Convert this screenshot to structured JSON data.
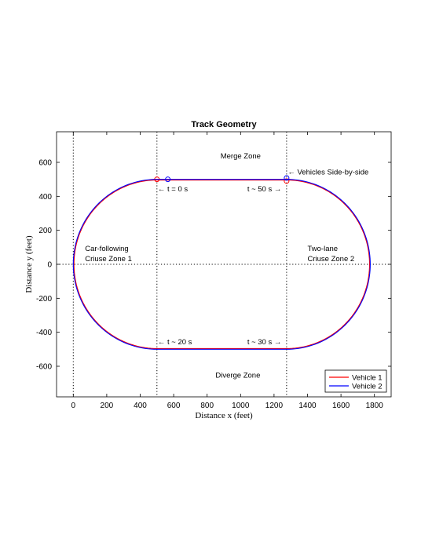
{
  "chart_data": {
    "type": "line",
    "title": "Track Geometry",
    "xlabel": "Distance x (feet)",
    "ylabel": "Distance y (feet)",
    "xlim": [
      -100,
      1900
    ],
    "ylim": [
      -780,
      780
    ],
    "xticks": [
      0,
      200,
      400,
      600,
      800,
      1000,
      1200,
      1400,
      1600,
      1800
    ],
    "yticks": [
      -600,
      -400,
      -200,
      0,
      200,
      400,
      600
    ],
    "grid": false,
    "legend_location": "bottom-right",
    "reference_lines": {
      "vertical_x": [
        0,
        500,
        1275
      ],
      "horizontal_y": [
        0
      ]
    },
    "series": [
      {
        "name": "Vehicle 1",
        "color": "#ff0000",
        "track": {
          "x_left": 500,
          "x_right": 1275,
          "y_top": 496,
          "y_bottom": -496,
          "left_radius": 496,
          "right_radius": 496
        },
        "markers": [
          [
            500,
            500
          ],
          [
            1275,
            490
          ]
        ]
      },
      {
        "name": "Vehicle 2",
        "color": "#0000ff",
        "track": {
          "x_left": 500,
          "x_right": 1275,
          "y_top": 500,
          "y_bottom": -500,
          "left_radius": 500,
          "right_radius": 500
        },
        "markers": [
          [
            565,
            500
          ],
          [
            1275,
            508
          ]
        ]
      }
    ],
    "annotations": [
      {
        "text": "Merge Zone",
        "x": 880,
        "y": 640
      },
      {
        "text": "Diverge Zone",
        "x": 850,
        "y": -650
      },
      {
        "text": "Car-following",
        "x": 70,
        "y": 95
      },
      {
        "text": "Criuse Zone 1",
        "x": 70,
        "y": 35
      },
      {
        "text": "Two-lane",
        "x": 1400,
        "y": 95
      },
      {
        "text": "Criuse Zone 2",
        "x": 1400,
        "y": 35
      },
      {
        "text": "← t = 0 s",
        "x": 505,
        "y": 445
      },
      {
        "text": "t ~ 50 s →",
        "x": 1040,
        "y": 445
      },
      {
        "text": "← Vehicles Side-by-side",
        "x": 1282,
        "y": 545
      },
      {
        "text": "← t ~ 20 s",
        "x": 505,
        "y": -455
      },
      {
        "text": "t ~ 30 s →",
        "x": 1040,
        "y": -455
      }
    ]
  }
}
